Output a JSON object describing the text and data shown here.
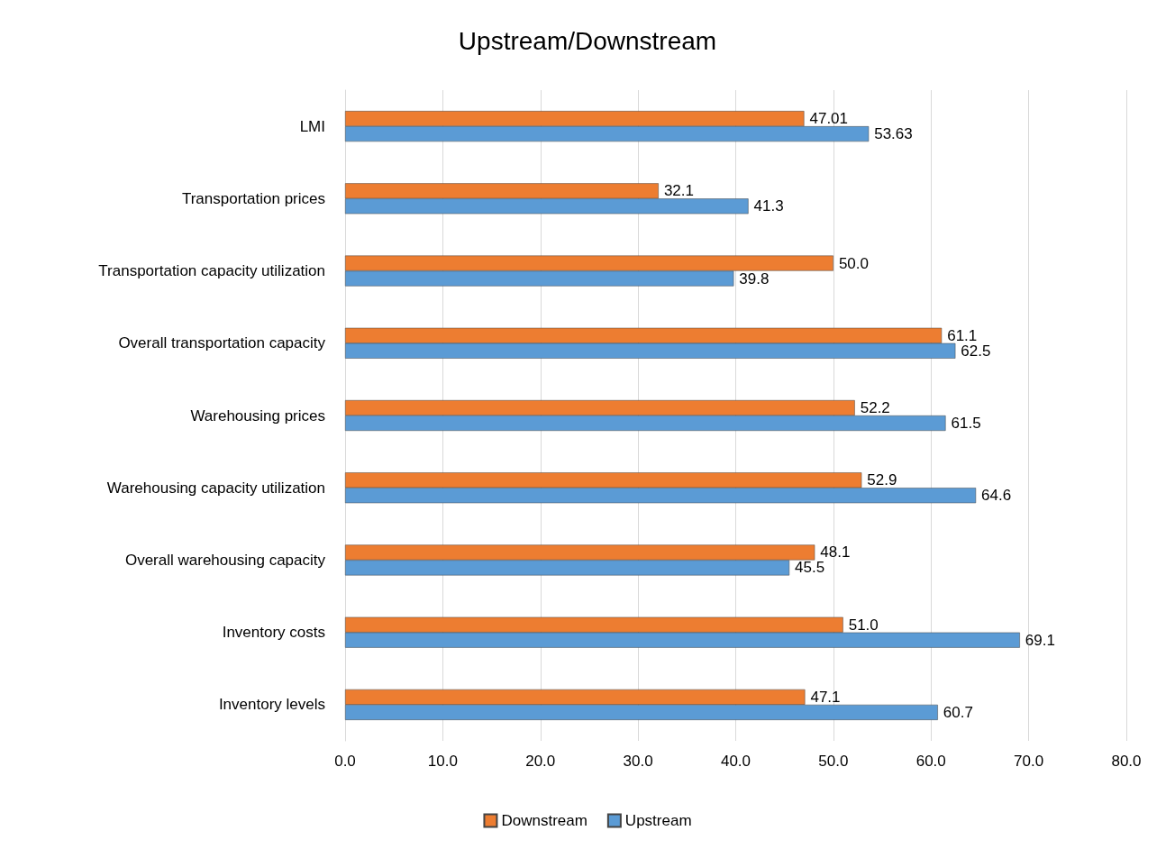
{
  "chart_data": {
    "type": "bar",
    "title": "Upstream/Downstream",
    "orientation": "horizontal",
    "categories": [
      "LMI",
      "Transportation prices",
      "Transportation capacity utilization",
      "Overall transportation capacity",
      "Warehousing prices",
      "Warehousing capacity utilization",
      "Overall warehousing capacity",
      "Inventory costs",
      "Inventory levels"
    ],
    "series": [
      {
        "name": "Downstream",
        "color": "#ed7d31",
        "values": [
          47.01,
          32.1,
          50.0,
          61.1,
          52.2,
          52.9,
          48.1,
          51.0,
          47.1
        ],
        "value_labels": [
          "47.01",
          "32.1",
          "50.0",
          "61.1",
          "52.2",
          "52.9",
          "48.1",
          "51.0",
          "47.1"
        ]
      },
      {
        "name": "Upstream",
        "color": "#5b9bd5",
        "values": [
          53.63,
          41.3,
          39.8,
          62.5,
          61.5,
          64.6,
          45.5,
          69.1,
          60.7
        ],
        "value_labels": [
          "53.63",
          "41.3",
          "39.8",
          "62.5",
          "61.5",
          "64.6",
          "45.5",
          "69.1",
          "60.7"
        ]
      }
    ],
    "xlim": [
      0,
      80
    ],
    "xticks": [
      {
        "value": 0,
        "label": "0.0"
      },
      {
        "value": 10,
        "label": "10.0"
      },
      {
        "value": 20,
        "label": "20.0"
      },
      {
        "value": 30,
        "label": "30.0"
      },
      {
        "value": 40,
        "label": "40.0"
      },
      {
        "value": 50,
        "label": "50.0"
      },
      {
        "value": 60,
        "label": "60.0"
      },
      {
        "value": 70,
        "label": "70.0"
      },
      {
        "value": 80,
        "label": "80.0"
      }
    ],
    "grid": true,
    "legend": "bottom"
  }
}
